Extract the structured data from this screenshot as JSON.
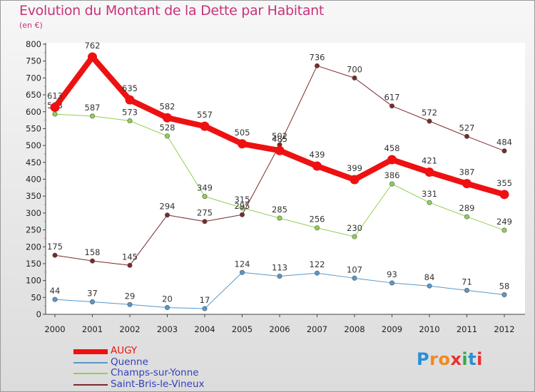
{
  "header": {
    "title": "Evolution du Montant de la Dette par Habitant",
    "subtitle": "(en €)"
  },
  "logo": {
    "text": "Proxiti",
    "letters": [
      "P",
      "r",
      "o",
      "x",
      "i",
      "t",
      "i"
    ],
    "colors": [
      "#2a8fd6",
      "#f08a1c",
      "#f08a1c",
      "#e8322f",
      "#3aa84a",
      "#2a8fd6",
      "#e8322f"
    ]
  },
  "chart_data": {
    "type": "line",
    "title": "Evolution du Montant de la Dette par Habitant",
    "subtitle": "(en €)",
    "xlabel": "",
    "ylabel": "",
    "x": [
      "2000",
      "2001",
      "2002",
      "2003",
      "2004",
      "2005",
      "2006",
      "2007",
      "2008",
      "2009",
      "2010",
      "2011",
      "2012"
    ],
    "ylim": [
      0,
      800
    ],
    "yticks": [
      0,
      50,
      100,
      150,
      200,
      250,
      300,
      350,
      400,
      450,
      500,
      550,
      600,
      650,
      700,
      750,
      800
    ],
    "grid": false,
    "legend_position": "bottom-left",
    "series": [
      {
        "name": "AUGY",
        "color": "#ee1111",
        "width": 8,
        "values": [
          613,
          762,
          635,
          582,
          557,
          505,
          485,
          439,
          399,
          458,
          421,
          387,
          355
        ]
      },
      {
        "name": "Quenne",
        "color": "#5598cc",
        "width": 1,
        "values": [
          44,
          37,
          29,
          20,
          17,
          124,
          113,
          122,
          107,
          93,
          84,
          71,
          58
        ]
      },
      {
        "name": "Champs-sur-Yonne",
        "color": "#90d050",
        "width": 1,
        "values": [
          593,
          587,
          573,
          528,
          349,
          315,
          285,
          256,
          230,
          386,
          331,
          289,
          249
        ]
      },
      {
        "name": "Saint-Bris-le-Vineux",
        "color": "#7a2a2a",
        "width": 1,
        "values": [
          175,
          158,
          145,
          294,
          275,
          295,
          502,
          736,
          700,
          617,
          572,
          527,
          484
        ]
      }
    ]
  }
}
